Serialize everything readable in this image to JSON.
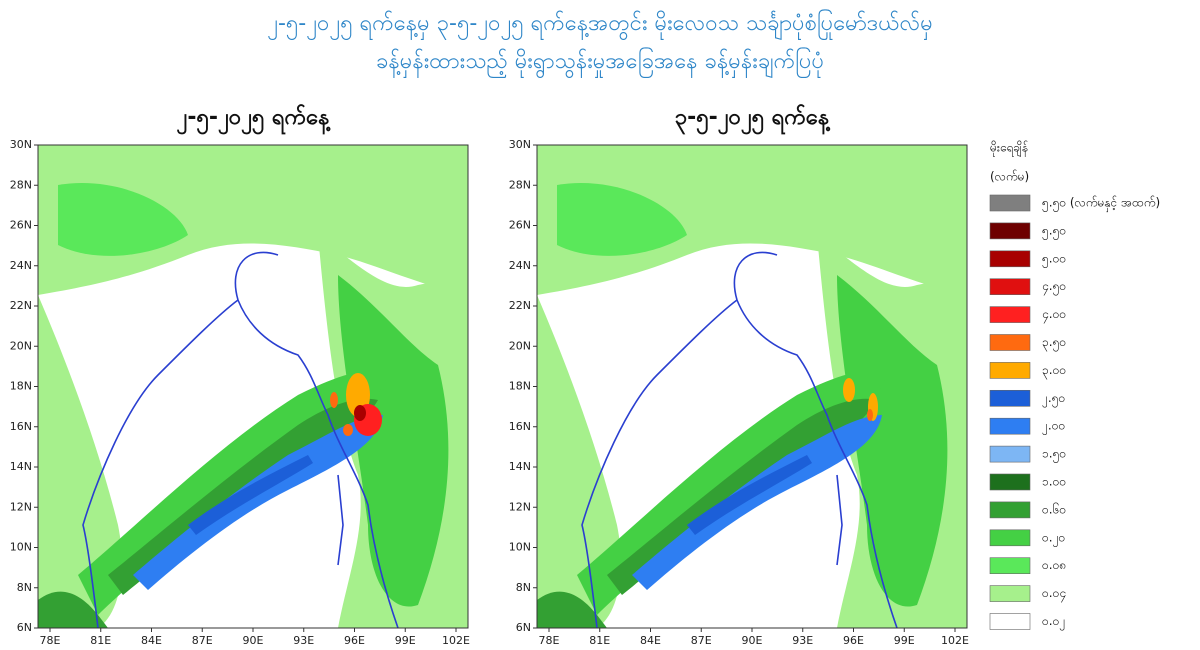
{
  "header": {
    "title_lines": [
      "၂-၅-၂၀၂၅ ရက်နေ့မှ ၃-၅-၂၀၂၅ ရက်နေ့အတွင်း မိုးလေဝသ သင်္ချာပုံစံပြုမော်ဒယ်လ်မှ",
      "ခန့်မှန်းထားသည့် မိုးရွာသွန်းမှုအခြေအနေ ခန့်မှန်းချက်ပြပုံ"
    ]
  },
  "maps": [
    {
      "title": "၂-၅-၂၀၂၅ ရက်နေ့",
      "lat_labels": [
        "30N",
        "28N",
        "26N",
        "24N",
        "22N",
        "20N",
        "18N",
        "16N",
        "14N",
        "12N",
        "10N",
        "8N",
        "6N"
      ],
      "lon_labels": [
        "78E",
        "81E",
        "84E",
        "87E",
        "90E",
        "93E",
        "96E",
        "99E",
        "102E"
      ]
    },
    {
      "title": "၃-၅-၂၀၂၅ ရက်နေ့",
      "lat_labels": [
        "30N",
        "28N",
        "26N",
        "24N",
        "22N",
        "20N",
        "18N",
        "16N",
        "14N",
        "12N",
        "10N",
        "8N",
        "6N"
      ],
      "lon_labels": [
        "78E",
        "81E",
        "84E",
        "87E",
        "90E",
        "93E",
        "96E",
        "99E",
        "102E"
      ]
    }
  ],
  "legend": {
    "title": "မိုးရေချိန်",
    "unit": "(လက်မ)",
    "items": [
      {
        "label": "၅.၅၀ (လက်မနှင့် အထက်)",
        "color": "#7f7f7f"
      },
      {
        "label": "၅.၅၀",
        "color": "#6e0000"
      },
      {
        "label": "၅.၀၀",
        "color": "#a80000"
      },
      {
        "label": "၄.၅၀",
        "color": "#e01010"
      },
      {
        "label": "၄.၀၀",
        "color": "#ff2020"
      },
      {
        "label": "၃.၅၀",
        "color": "#ff6a10"
      },
      {
        "label": "၃.၀၀",
        "color": "#ffaa00"
      },
      {
        "label": "၂.၅၀",
        "color": "#1c5fd8"
      },
      {
        "label": "၂.၀၀",
        "color": "#2e7ef2"
      },
      {
        "label": "၁.၅၀",
        "color": "#7db6f4"
      },
      {
        "label": "၁.၀၀",
        "color": "#1d701d"
      },
      {
        "label": "၀.၆၀",
        "color": "#33a033"
      },
      {
        "label": "၀.၂၀",
        "color": "#44d044"
      },
      {
        "label": "၀.၀၈",
        "color": "#5ae85a"
      },
      {
        "label": "၀.၀၄",
        "color": "#a6f08c"
      },
      {
        "label": "၀.၀၂",
        "color": "#ffffff"
      }
    ]
  }
}
